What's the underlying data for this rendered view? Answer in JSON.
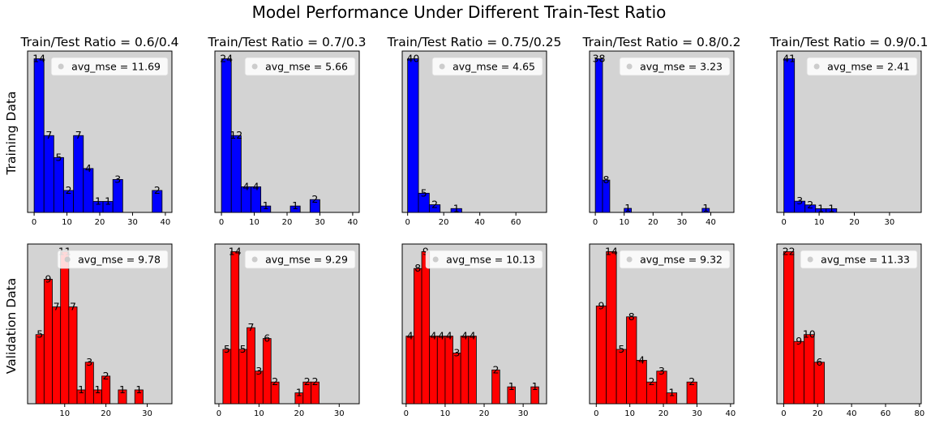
{
  "title": "Model Performance Under Different Train-Test Ratio",
  "row_labels": [
    "Training Data",
    "Validation Data"
  ],
  "colors": {
    "train": "#0000ff",
    "validation": "#ff0000",
    "axes_bg": "#d3d3d3",
    "legend_marker": "#cccccc"
  },
  "chart_data": [
    {
      "type": "bar",
      "row": "Training Data",
      "title": "Train/Test Ratio = 0.6/0.4",
      "xlim": [
        -2,
        42
      ],
      "xticks": [
        0,
        10,
        20,
        30,
        40
      ],
      "bin_width": 3,
      "bins": [
        {
          "x": 0,
          "value": 14
        },
        {
          "x": 3,
          "value": 7
        },
        {
          "x": 6,
          "value": 5
        },
        {
          "x": 9,
          "value": 2
        },
        {
          "x": 12,
          "value": 7
        },
        {
          "x": 15,
          "value": 4
        },
        {
          "x": 18,
          "value": 1
        },
        {
          "x": 21,
          "value": 1
        },
        {
          "x": 24,
          "value": 3
        },
        {
          "x": 36,
          "value": 2
        }
      ],
      "legend": "avg_mse = 11.69",
      "legend_position": "upper right"
    },
    {
      "type": "bar",
      "row": "Training Data",
      "title": "Train/Test Ratio = 0.7/0.3",
      "xlim": [
        -2,
        42
      ],
      "xticks": [
        0,
        10,
        20,
        30,
        40
      ],
      "bin_width": 3,
      "bins": [
        {
          "x": 0,
          "value": 24
        },
        {
          "x": 3,
          "value": 12
        },
        {
          "x": 6,
          "value": 4
        },
        {
          "x": 9,
          "value": 4
        },
        {
          "x": 12,
          "value": 1
        },
        {
          "x": 21,
          "value": 1
        },
        {
          "x": 27,
          "value": 2
        }
      ],
      "legend": "avg_mse = 5.66",
      "legend_position": "upper right"
    },
    {
      "type": "bar",
      "row": "Training Data",
      "title": "Train/Test Ratio = 0.75/0.25",
      "xlim": [
        -3,
        77
      ],
      "xticks": [
        0,
        20,
        40,
        60
      ],
      "bin_width": 6,
      "bins": [
        {
          "x": 0,
          "value": 40
        },
        {
          "x": 6,
          "value": 5
        },
        {
          "x": 12,
          "value": 2
        },
        {
          "x": 24,
          "value": 1
        }
      ],
      "legend": "avg_mse = 4.65",
      "legend_position": "upper right"
    },
    {
      "type": "bar",
      "row": "Training Data",
      "title": "Train/Test Ratio = 0.8/0.2",
      "xlim": [
        -2,
        48
      ],
      "xticks": [
        0,
        10,
        20,
        30,
        40
      ],
      "bin_width": 2.5,
      "bins": [
        {
          "x": 0,
          "value": 38
        },
        {
          "x": 2.5,
          "value": 8
        },
        {
          "x": 10,
          "value": 1
        },
        {
          "x": 37,
          "value": 1
        }
      ],
      "legend": "avg_mse = 3.23",
      "legend_position": "upper right"
    },
    {
      "type": "bar",
      "row": "Training Data",
      "title": "Train/Test Ratio = 0.9/0.1",
      "xlim": [
        -2,
        39
      ],
      "xticks": [
        0,
        10,
        20,
        30
      ],
      "bin_width": 3,
      "bins": [
        {
          "x": 0,
          "value": 41
        },
        {
          "x": 3,
          "value": 3
        },
        {
          "x": 6,
          "value": 2
        },
        {
          "x": 9,
          "value": 1
        },
        {
          "x": 12,
          "value": 1
        }
      ],
      "legend": "avg_mse = 2.41",
      "legend_position": "upper right"
    },
    {
      "type": "bar",
      "row": "Validation Data",
      "title": "",
      "xlim": [
        1,
        36
      ],
      "xticks": [
        10,
        20,
        30
      ],
      "bin_width": 2,
      "bins": [
        {
          "x": 3,
          "value": 5
        },
        {
          "x": 5,
          "value": 9
        },
        {
          "x": 7,
          "value": 7
        },
        {
          "x": 9,
          "value": 11
        },
        {
          "x": 11,
          "value": 7
        },
        {
          "x": 13,
          "value": 1
        },
        {
          "x": 15,
          "value": 3
        },
        {
          "x": 17,
          "value": 1
        },
        {
          "x": 19,
          "value": 2
        },
        {
          "x": 23,
          "value": 1
        },
        {
          "x": 27,
          "value": 1
        }
      ],
      "legend": "avg_mse = 9.78",
      "legend_position": "upper right"
    },
    {
      "type": "bar",
      "row": "Validation Data",
      "title": "",
      "xlim": [
        -1,
        35
      ],
      "xticks": [
        0,
        10,
        20,
        30
      ],
      "bin_width": 2,
      "bins": [
        {
          "x": 1,
          "value": 5
        },
        {
          "x": 3,
          "value": 14
        },
        {
          "x": 5,
          "value": 5
        },
        {
          "x": 7,
          "value": 7
        },
        {
          "x": 9,
          "value": 3
        },
        {
          "x": 11,
          "value": 6
        },
        {
          "x": 13,
          "value": 2
        },
        {
          "x": 19,
          "value": 1
        },
        {
          "x": 21,
          "value": 2
        },
        {
          "x": 23,
          "value": 2
        }
      ],
      "legend": "avg_mse = 9.29",
      "legend_position": "upper right"
    },
    {
      "type": "bar",
      "row": "Validation Data",
      "title": "",
      "xlim": [
        -1,
        36
      ],
      "xticks": [
        0,
        10,
        20,
        30
      ],
      "bin_width": 2,
      "bins": [
        {
          "x": 0,
          "value": 4
        },
        {
          "x": 2,
          "value": 8
        },
        {
          "x": 4,
          "value": 9
        },
        {
          "x": 6,
          "value": 4
        },
        {
          "x": 8,
          "value": 4
        },
        {
          "x": 10,
          "value": 4
        },
        {
          "x": 12,
          "value": 3
        },
        {
          "x": 14,
          "value": 4
        },
        {
          "x": 16,
          "value": 4
        },
        {
          "x": 22,
          "value": 2
        },
        {
          "x": 26,
          "value": 1
        },
        {
          "x": 32,
          "value": 1
        }
      ],
      "legend": "avg_mse = 10.13",
      "legend_position": "upper right"
    },
    {
      "type": "bar",
      "row": "Validation Data",
      "title": "",
      "xlim": [
        -2,
        41
      ],
      "xticks": [
        0,
        10,
        20,
        30,
        40
      ],
      "bin_width": 3,
      "bins": [
        {
          "x": 0,
          "value": 9
        },
        {
          "x": 3,
          "value": 14
        },
        {
          "x": 6,
          "value": 5
        },
        {
          "x": 9,
          "value": 8
        },
        {
          "x": 12,
          "value": 4
        },
        {
          "x": 15,
          "value": 2
        },
        {
          "x": 18,
          "value": 3
        },
        {
          "x": 21,
          "value": 1
        },
        {
          "x": 27,
          "value": 2
        }
      ],
      "legend": "avg_mse = 9.32",
      "legend_position": "upper right"
    },
    {
      "type": "bar",
      "row": "Validation Data",
      "title": "",
      "xlim": [
        -4,
        81
      ],
      "xticks": [
        0,
        20,
        40,
        60,
        80
      ],
      "bin_width": 6,
      "bins": [
        {
          "x": 0,
          "value": 22
        },
        {
          "x": 6,
          "value": 9
        },
        {
          "x": 12,
          "value": 10
        },
        {
          "x": 18,
          "value": 6
        }
      ],
      "legend": "avg_mse = 11.33",
      "legend_position": "upper right"
    }
  ]
}
